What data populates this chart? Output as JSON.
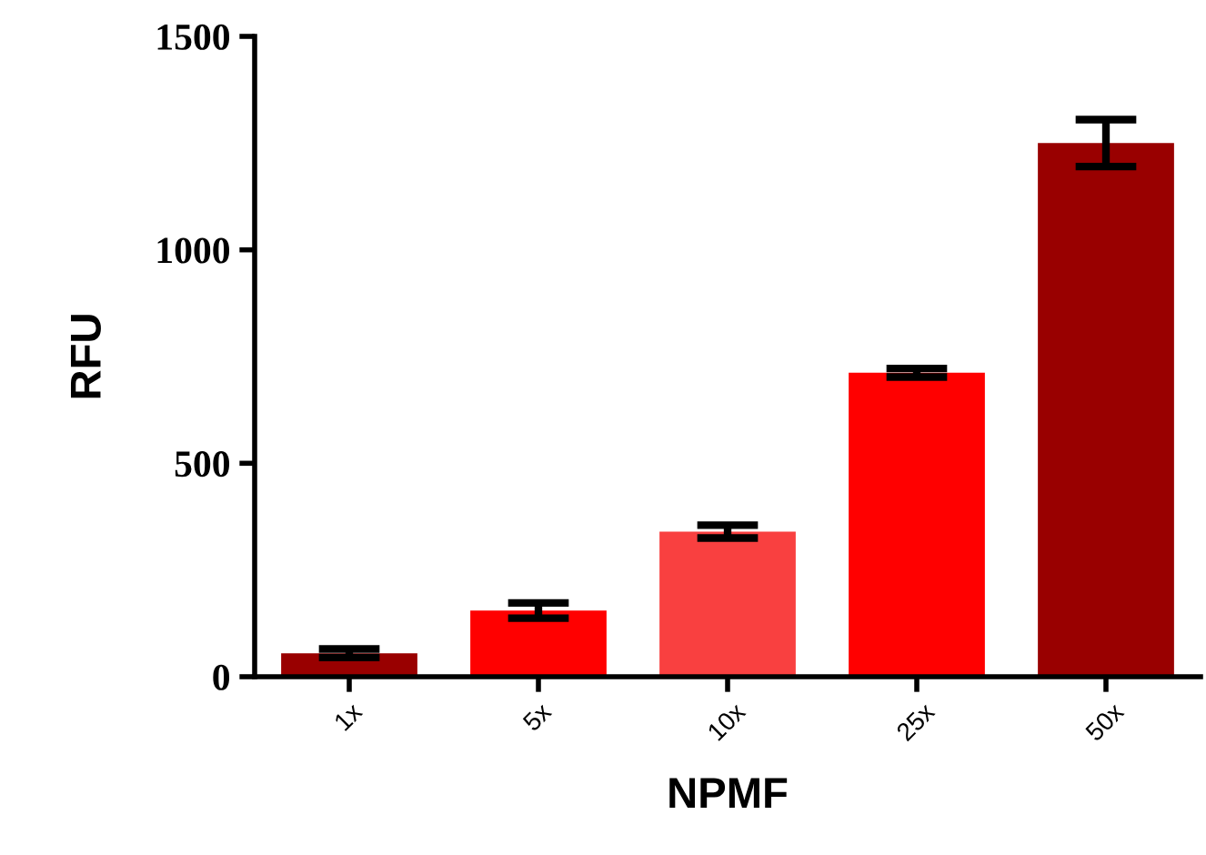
{
  "chart_data": {
    "type": "bar",
    "xlabel": "NPMF",
    "ylabel": "RFU",
    "categories": [
      "1x",
      "5x",
      "10x",
      "25x",
      "50x"
    ],
    "values": [
      55,
      155,
      340,
      712,
      1250
    ],
    "errors": [
      10,
      18,
      15,
      10,
      55
    ],
    "colors": [
      "#990000",
      "#ff0000",
      "#f94040",
      "#ff0000",
      "#990000"
    ],
    "ylim": [
      0,
      1500
    ],
    "yticks": [
      0,
      500,
      1000,
      1500
    ],
    "grid": false
  }
}
